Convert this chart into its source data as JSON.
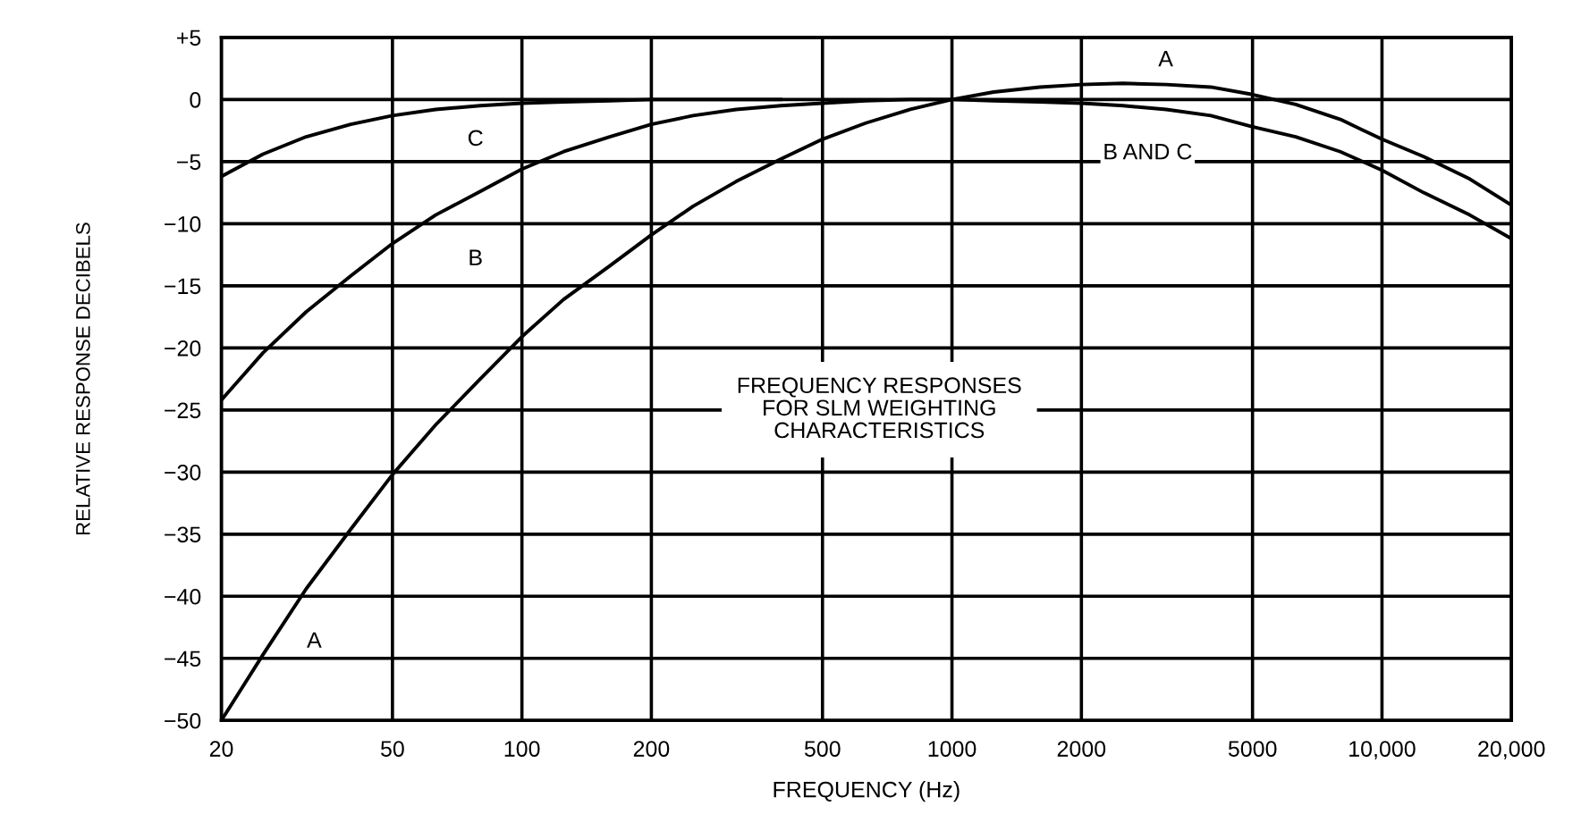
{
  "chart_data": {
    "type": "line",
    "xlabel": "FREQUENCY (Hz)",
    "ylabel": "RELATIVE RESPONSE DECIBELS",
    "log": "x",
    "grid": true,
    "marker": "none",
    "line_style": "solid",
    "xlim": [
      20,
      20000
    ],
    "ylim": [
      -50,
      5
    ],
    "xticks": [
      20,
      50,
      100,
      200,
      500,
      1000,
      2000,
      5000,
      {
        "value": 10000,
        "label": "10,000"
      },
      {
        "value": 20000,
        "label": "20,000"
      }
    ],
    "yticks": [
      {
        "value": 5,
        "label": "+5"
      },
      0,
      -5,
      -10,
      -15,
      -20,
      -25,
      -30,
      -35,
      -40,
      -45,
      -50
    ],
    "series": [
      {
        "color": "#000000",
        "x": [
          20,
          25,
          31.5,
          40,
          50,
          63,
          80,
          100,
          125,
          160,
          200,
          250,
          315,
          400,
          500,
          630,
          800,
          1000,
          1250,
          1600,
          2000,
          2500,
          3150,
          4000,
          5000,
          6300,
          8000,
          10000,
          12500,
          16000,
          20000
        ],
        "values": [
          -50,
          -44.7,
          -39.4,
          -34.6,
          -30.2,
          -26.2,
          -22.5,
          -19.1,
          -16.1,
          -13.4,
          -10.9,
          -8.6,
          -6.6,
          -4.8,
          -3.2,
          -1.9,
          -0.8,
          0,
          0.6,
          1.0,
          1.2,
          1.3,
          1.2,
          1.0,
          0.4,
          -0.4,
          -1.6,
          -3.2,
          -4.6,
          -6.4,
          -8.5
        ]
      },
      {
        "color": "#000000",
        "x": [
          20,
          25,
          31.5,
          40,
          50,
          63,
          80,
          100,
          125,
          160,
          200,
          250,
          315,
          400,
          500,
          630,
          800,
          1000,
          1250,
          1600,
          2000,
          2500,
          3150,
          4000,
          5000,
          6300,
          8000,
          10000,
          12500,
          16000,
          20000
        ],
        "values": [
          -24.2,
          -20.4,
          -17.1,
          -14.2,
          -11.6,
          -9.3,
          -7.4,
          -5.6,
          -4.2,
          -3.0,
          -2.0,
          -1.3,
          -0.8,
          -0.5,
          -0.3,
          -0.1,
          0,
          0,
          -0.1,
          -0.2,
          -0.3,
          -0.5,
          -0.8,
          -1.3,
          -2.2,
          -3.0,
          -4.2,
          -5.7,
          -7.5,
          -9.3,
          -11.2
        ]
      },
      {
        "color": "#000000",
        "x": [
          20,
          25,
          31.5,
          40,
          50,
          63,
          80,
          100,
          125,
          160,
          200,
          400
        ],
        "values": [
          -6.2,
          -4.4,
          -3.0,
          -2.0,
          -1.3,
          -0.8,
          -0.5,
          -0.3,
          -0.2,
          -0.1,
          0,
          0
        ]
      }
    ],
    "annotations": [
      "A",
      "B AND C",
      "C",
      "B",
      "A",
      "FREQUENCY RESPONSES\nFOR SLM WEIGHTING\nCHARACTERISTICS"
    ]
  }
}
